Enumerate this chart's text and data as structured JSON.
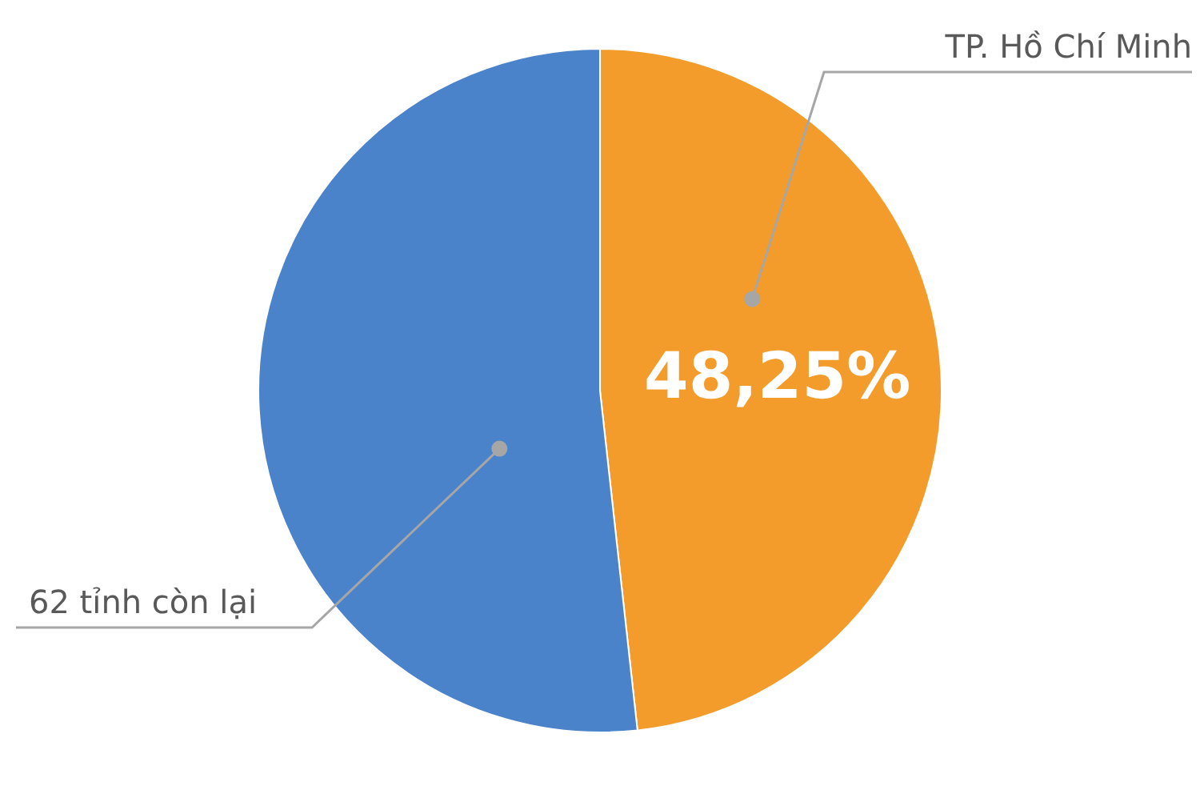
{
  "chart_data": {
    "type": "pie",
    "categories": [
      "TP. Hồ Chí Minh",
      "62 tỉnh còn lại"
    ],
    "values": [
      48.25,
      51.75
    ],
    "colors": [
      "#f39c2c",
      "#4a83c9"
    ],
    "value_labels": [
      "48,25%",
      null
    ],
    "legend": false
  }
}
